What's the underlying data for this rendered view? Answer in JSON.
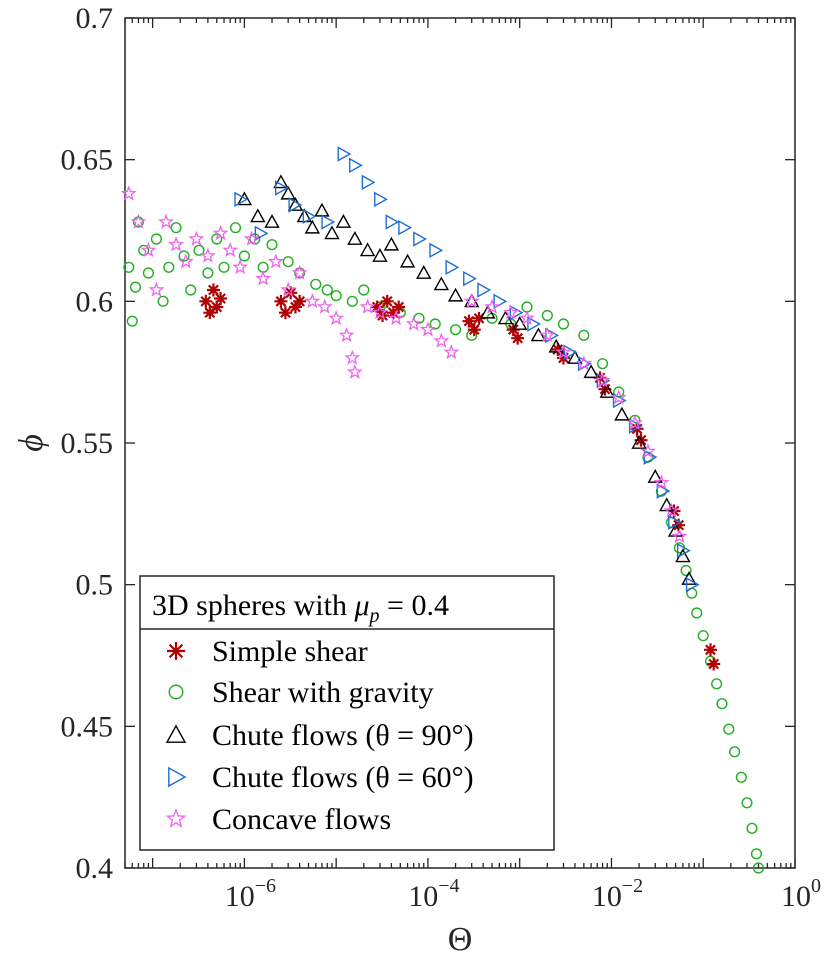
{
  "chart_data": {
    "type": "scatter",
    "xscale": "log",
    "xlim": [
      5e-08,
      1
    ],
    "ylim": [
      0.4,
      0.7
    ],
    "xlabel": "Θ",
    "ylabel": "ϕ",
    "x_tick_labels": [
      {
        "base": "10",
        "exp": "−6",
        "value": 1e-06
      },
      {
        "base": "10",
        "exp": "−4",
        "value": 0.0001
      },
      {
        "base": "10",
        "exp": "−2",
        "value": 0.01
      },
      {
        "base": "10",
        "exp": "0",
        "value": 1
      }
    ],
    "y_tick_labels": [
      {
        "text": "0.4",
        "value": 0.4
      },
      {
        "text": "0.45",
        "value": 0.45
      },
      {
        "text": "0.5",
        "value": 0.5
      },
      {
        "text": "0.55",
        "value": 0.55
      },
      {
        "text": "0.6",
        "value": 0.6
      },
      {
        "text": "0.65",
        "value": 0.65
      },
      {
        "text": "0.7",
        "value": 0.7
      }
    ],
    "legend": {
      "title_prefix": "3D spheres with ",
      "title_math_var": "μ",
      "title_math_sub": "p",
      "title_math_rest": " = 0.4",
      "location": "lower-left",
      "entries": [
        {
          "label": "Simple shear",
          "marker": "asterisk",
          "color": "#b00000"
        },
        {
          "label": "Shear with gravity",
          "marker": "circle",
          "color": "#22b022"
        },
        {
          "label": "Chute flows (θ = 90°)",
          "marker": "triangle-up",
          "color": "#000000"
        },
        {
          "label": "Chute flows (θ = 60°)",
          "marker": "triangle-right",
          "color": "#1f6fd0"
        },
        {
          "label": "Concave flows",
          "marker": "star",
          "color": "#f060f0"
        }
      ]
    },
    "series": [
      {
        "name": "Shear with gravity",
        "marker": "circle",
        "color": "#22b022",
        "points": [
          [
            5.5e-08,
            0.612
          ],
          [
            6e-08,
            0.593
          ],
          [
            6.5e-08,
            0.605
          ],
          [
            7e-08,
            0.628
          ],
          [
            8e-08,
            0.618
          ],
          [
            9e-08,
            0.61
          ],
          [
            1.1e-07,
            0.622
          ],
          [
            1.3e-07,
            0.6
          ],
          [
            1.5e-07,
            0.612
          ],
          [
            1.8e-07,
            0.626
          ],
          [
            2.2e-07,
            0.616
          ],
          [
            2.6e-07,
            0.604
          ],
          [
            3.2e-07,
            0.618
          ],
          [
            4e-07,
            0.61
          ],
          [
            5e-07,
            0.622
          ],
          [
            6e-07,
            0.612
          ],
          [
            8e-07,
            0.626
          ],
          [
            1e-06,
            0.616
          ],
          [
            1.3e-06,
            0.622
          ],
          [
            1.6e-06,
            0.612
          ],
          [
            2e-06,
            0.62
          ],
          [
            3e-06,
            0.614
          ],
          [
            4e-06,
            0.61
          ],
          [
            6e-06,
            0.606
          ],
          [
            8e-06,
            0.604
          ],
          [
            1e-05,
            0.602
          ],
          [
            1.5e-05,
            0.6
          ],
          [
            2e-05,
            0.604
          ],
          [
            3e-05,
            0.598
          ],
          [
            5e-05,
            0.596
          ],
          [
            8e-05,
            0.594
          ],
          [
            0.00012,
            0.592
          ],
          [
            0.0002,
            0.59
          ],
          [
            0.0003,
            0.588
          ],
          [
            0.0005,
            0.594
          ],
          [
            0.0008,
            0.592
          ],
          [
            0.0012,
            0.598
          ],
          [
            0.002,
            0.595
          ],
          [
            0.003,
            0.592
          ],
          [
            0.005,
            0.588
          ],
          [
            0.008,
            0.578
          ],
          [
            0.012,
            0.568
          ],
          [
            0.018,
            0.558
          ],
          [
            0.025,
            0.545
          ],
          [
            0.035,
            0.533
          ],
          [
            0.045,
            0.522
          ],
          [
            0.055,
            0.513
          ],
          [
            0.065,
            0.505
          ],
          [
            0.075,
            0.497
          ],
          [
            0.085,
            0.49
          ],
          [
            0.1,
            0.482
          ],
          [
            0.12,
            0.473
          ],
          [
            0.14,
            0.465
          ],
          [
            0.16,
            0.458
          ],
          [
            0.19,
            0.449
          ],
          [
            0.22,
            0.441
          ],
          [
            0.26,
            0.432
          ],
          [
            0.3,
            0.423
          ],
          [
            0.34,
            0.414
          ],
          [
            0.38,
            0.405
          ],
          [
            0.4,
            0.4
          ]
        ]
      },
      {
        "name": "Simple shear",
        "marker": "asterisk",
        "color": "#b00000",
        "points": [
          [
            3.8e-07,
            0.6
          ],
          [
            4.2e-07,
            0.596
          ],
          [
            4.6e-07,
            0.604
          ],
          [
            5e-07,
            0.598
          ],
          [
            5.5e-07,
            0.601
          ],
          [
            2.5e-06,
            0.6
          ],
          [
            2.8e-06,
            0.596
          ],
          [
            3.2e-06,
            0.603
          ],
          [
            3.6e-06,
            0.598
          ],
          [
            4e-06,
            0.6
          ],
          [
            2.8e-05,
            0.598
          ],
          [
            3.2e-05,
            0.595
          ],
          [
            3.6e-05,
            0.6
          ],
          [
            4.2e-05,
            0.596
          ],
          [
            4.8e-05,
            0.598
          ],
          [
            0.00028,
            0.593
          ],
          [
            0.00032,
            0.59
          ],
          [
            0.00036,
            0.594
          ],
          [
            0.00085,
            0.59
          ],
          [
            0.00095,
            0.587
          ],
          [
            0.0026,
            0.583
          ],
          [
            0.003,
            0.58
          ],
          [
            0.0075,
            0.573
          ],
          [
            0.0085,
            0.569
          ],
          [
            0.019,
            0.555
          ],
          [
            0.021,
            0.551
          ],
          [
            0.048,
            0.526
          ],
          [
            0.054,
            0.521
          ],
          [
            0.12,
            0.477
          ],
          [
            0.13,
            0.472
          ]
        ]
      },
      {
        "name": "Chute flows (θ = 90°)",
        "marker": "triangle-up",
        "color": "#000000",
        "points": [
          [
            1e-06,
            0.636
          ],
          [
            1.4e-06,
            0.63
          ],
          [
            2e-06,
            0.628
          ],
          [
            2.5e-06,
            0.642
          ],
          [
            3e-06,
            0.638
          ],
          [
            3.6e-06,
            0.634
          ],
          [
            4.5e-06,
            0.63
          ],
          [
            5.5e-06,
            0.626
          ],
          [
            7e-06,
            0.632
          ],
          [
            9e-06,
            0.624
          ],
          [
            1.2e-05,
            0.628
          ],
          [
            1.6e-05,
            0.622
          ],
          [
            2.2e-05,
            0.618
          ],
          [
            3e-05,
            0.616
          ],
          [
            4e-05,
            0.62
          ],
          [
            6e-05,
            0.614
          ],
          [
            9e-05,
            0.61
          ],
          [
            0.00014,
            0.606
          ],
          [
            0.0002,
            0.602
          ],
          [
            0.0003,
            0.6
          ],
          [
            0.00045,
            0.596
          ],
          [
            0.0007,
            0.594
          ],
          [
            0.001,
            0.592
          ],
          [
            0.0016,
            0.588
          ],
          [
            0.0025,
            0.584
          ],
          [
            0.004,
            0.58
          ],
          [
            0.006,
            0.575
          ],
          [
            0.009,
            0.568
          ],
          [
            0.013,
            0.56
          ],
          [
            0.02,
            0.55
          ],
          [
            0.03,
            0.538
          ],
          [
            0.04,
            0.528
          ],
          [
            0.05,
            0.519
          ],
          [
            0.06,
            0.51
          ],
          [
            0.07,
            0.502
          ]
        ]
      },
      {
        "name": "Chute flows (θ = 60°)",
        "marker": "triangle-right",
        "color": "#1f6fd0",
        "points": [
          [
            9e-07,
            0.636
          ],
          [
            1.5e-06,
            0.624
          ],
          [
            2.5e-06,
            0.64
          ],
          [
            3.5e-06,
            0.634
          ],
          [
            5e-06,
            0.63
          ],
          [
            8e-06,
            0.628
          ],
          [
            1.2e-05,
            0.652
          ],
          [
            1.6e-05,
            0.648
          ],
          [
            2.2e-05,
            0.642
          ],
          [
            3e-05,
            0.636
          ],
          [
            4e-05,
            0.628
          ],
          [
            5.5e-05,
            0.626
          ],
          [
            8e-05,
            0.622
          ],
          [
            0.00012,
            0.618
          ],
          [
            0.00018,
            0.612
          ],
          [
            0.00028,
            0.608
          ],
          [
            0.0004,
            0.604
          ],
          [
            0.0006,
            0.6
          ],
          [
            0.0009,
            0.596
          ],
          [
            0.0014,
            0.592
          ],
          [
            0.0022,
            0.588
          ],
          [
            0.0035,
            0.582
          ],
          [
            0.005,
            0.578
          ],
          [
            0.008,
            0.572
          ],
          [
            0.012,
            0.565
          ],
          [
            0.018,
            0.556
          ],
          [
            0.026,
            0.545
          ],
          [
            0.036,
            0.533
          ],
          [
            0.048,
            0.522
          ],
          [
            0.06,
            0.512
          ],
          [
            0.075,
            0.5
          ]
        ]
      },
      {
        "name": "Concave flows",
        "marker": "star",
        "color": "#f060f0",
        "points": [
          [
            5.5e-08,
            0.638
          ],
          [
            7e-08,
            0.628
          ],
          [
            9e-08,
            0.618
          ],
          [
            1.1e-07,
            0.604
          ],
          [
            1.4e-07,
            0.628
          ],
          [
            1.8e-07,
            0.62
          ],
          [
            2.3e-07,
            0.614
          ],
          [
            3e-07,
            0.622
          ],
          [
            4e-07,
            0.616
          ],
          [
            5.5e-07,
            0.624
          ],
          [
            7e-07,
            0.618
          ],
          [
            9e-07,
            0.612
          ],
          [
            1.2e-06,
            0.622
          ],
          [
            1.6e-06,
            0.608
          ],
          [
            2.2e-06,
            0.614
          ],
          [
            3e-06,
            0.604
          ],
          [
            4e-06,
            0.61
          ],
          [
            5.5e-06,
            0.6
          ],
          [
            7.5e-06,
            0.598
          ],
          [
            1e-05,
            0.594
          ],
          [
            1.3e-05,
            0.588
          ],
          [
            1.5e-05,
            0.58
          ],
          [
            1.6e-05,
            0.575
          ],
          [
            2.2e-05,
            0.598
          ],
          [
            3e-05,
            0.596
          ],
          [
            4.5e-05,
            0.594
          ],
          [
            7e-05,
            0.592
          ],
          [
            0.0001,
            0.59
          ],
          [
            0.00014,
            0.586
          ],
          [
            0.00018,
            0.582
          ],
          [
            0.0003,
            0.6
          ],
          [
            0.0005,
            0.598
          ],
          [
            0.0008,
            0.596
          ],
          [
            0.0012,
            0.594
          ],
          [
            0.002,
            0.588
          ],
          [
            0.003,
            0.582
          ],
          [
            0.005,
            0.578
          ],
          [
            0.008,
            0.572
          ],
          [
            0.012,
            0.566
          ],
          [
            0.018,
            0.557
          ],
          [
            0.025,
            0.547
          ],
          [
            0.035,
            0.536
          ],
          [
            0.045,
            0.526
          ],
          [
            0.055,
            0.517
          ]
        ]
      }
    ]
  }
}
